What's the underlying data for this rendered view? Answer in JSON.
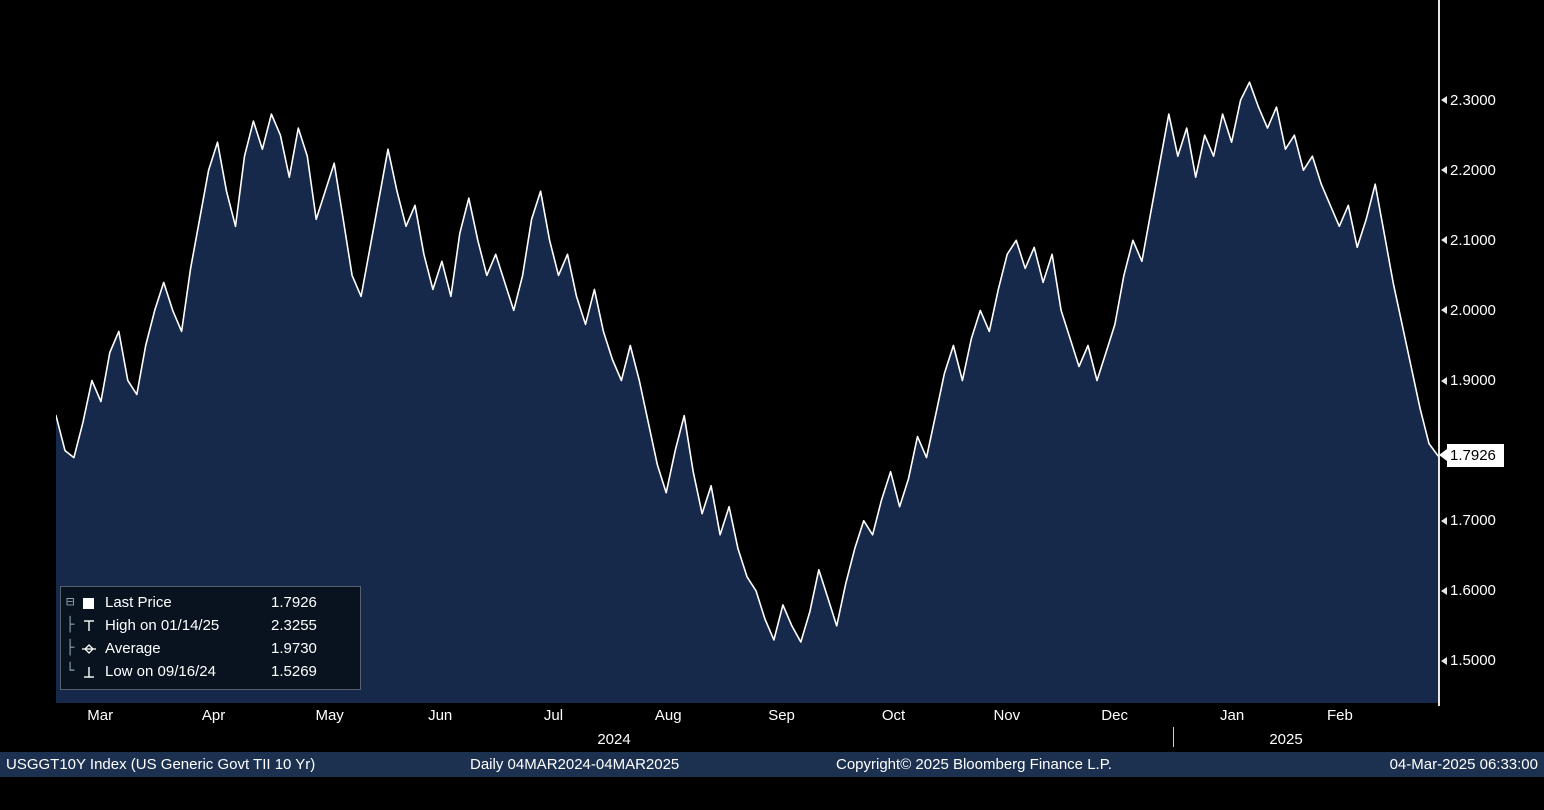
{
  "window": {
    "security": "USGGT10Y Index (US Generic Govt TII 10 Yr)",
    "frequency_range": "Daily 04MAR2024-04MAR2025",
    "copyright": "Copyright© 2025 Bloomberg Finance L.P.",
    "timestamp": "04-Mar-2025 06:33:00"
  },
  "legend": {
    "rows": [
      {
        "marker": "last-price-square",
        "label": "Last Price",
        "value": "1.7926"
      },
      {
        "marker": "high-marker",
        "label": "High on 01/14/25",
        "value": "2.3255"
      },
      {
        "marker": "average-marker",
        "label": "Average",
        "value": "1.9730"
      },
      {
        "marker": "low-marker",
        "label": "Low on 09/16/24",
        "value": "1.5269"
      }
    ],
    "collapse_icon": "⊟",
    "branch_icons": [
      "├",
      "├",
      "└"
    ]
  },
  "y_axis": {
    "ticks": [
      "2.3000",
      "2.2000",
      "2.1000",
      "2.0000",
      "1.9000",
      "1.7000",
      "1.6000",
      "1.5000"
    ],
    "last_price": "1.7926"
  },
  "x_axis": {
    "months": [
      "Mar",
      "Apr",
      "May",
      "Jun",
      "Jul",
      "Aug",
      "Sep",
      "Oct",
      "Nov",
      "Dec",
      "Jan",
      "Feb"
    ],
    "years": [
      {
        "label": "2024"
      },
      {
        "label": "2025"
      }
    ]
  },
  "colors": {
    "background": "#000000",
    "area_fill": "#16294a",
    "line": "#ffffff",
    "status_bar_bg": "#1c3150",
    "callout_bg": "#ffffff",
    "callout_text": "#000000",
    "axis": "#e6e6e6"
  },
  "chart_data": {
    "type": "area",
    "title": "USGGT10Y Index (US Generic Govt TII 10 Yr)",
    "frequency": "Daily",
    "date_range": "04MAR2024-04MAR2025",
    "x": "evenly spaced daily samples from 04-Mar-2024 to 04-Mar-2025",
    "categories_months": [
      "Mar",
      "Apr",
      "May",
      "Jun",
      "Jul",
      "Aug",
      "Sep",
      "Oct",
      "Nov",
      "Dec",
      "Jan",
      "Feb"
    ],
    "values": [
      1.85,
      1.8,
      1.79,
      1.84,
      1.9,
      1.87,
      1.94,
      1.97,
      1.9,
      1.88,
      1.95,
      2.0,
      2.04,
      2.0,
      1.97,
      2.06,
      2.13,
      2.2,
      2.24,
      2.17,
      2.12,
      2.22,
      2.27,
      2.23,
      2.28,
      2.25,
      2.19,
      2.26,
      2.22,
      2.13,
      2.17,
      2.21,
      2.13,
      2.05,
      2.02,
      2.09,
      2.16,
      2.23,
      2.17,
      2.12,
      2.15,
      2.08,
      2.03,
      2.07,
      2.02,
      2.11,
      2.16,
      2.1,
      2.05,
      2.08,
      2.04,
      2.0,
      2.05,
      2.13,
      2.17,
      2.1,
      2.05,
      2.08,
      2.02,
      1.98,
      2.03,
      1.97,
      1.93,
      1.9,
      1.95,
      1.9,
      1.84,
      1.78,
      1.74,
      1.8,
      1.85,
      1.77,
      1.71,
      1.75,
      1.68,
      1.72,
      1.66,
      1.62,
      1.6,
      1.56,
      1.53,
      1.58,
      1.55,
      1.527,
      1.57,
      1.63,
      1.59,
      1.55,
      1.61,
      1.66,
      1.7,
      1.68,
      1.73,
      1.77,
      1.72,
      1.76,
      1.82,
      1.79,
      1.85,
      1.91,
      1.95,
      1.9,
      1.96,
      2.0,
      1.97,
      2.03,
      2.08,
      2.1,
      2.06,
      2.09,
      2.04,
      2.08,
      2.0,
      1.96,
      1.92,
      1.95,
      1.9,
      1.94,
      1.98,
      2.05,
      2.1,
      2.07,
      2.14,
      2.21,
      2.28,
      2.22,
      2.26,
      2.19,
      2.25,
      2.22,
      2.28,
      2.24,
      2.3,
      2.3255,
      2.29,
      2.26,
      2.29,
      2.23,
      2.25,
      2.2,
      2.22,
      2.18,
      2.15,
      2.12,
      2.15,
      2.09,
      2.13,
      2.18,
      2.11,
      2.04,
      1.98,
      1.92,
      1.86,
      1.81,
      1.7926
    ],
    "ylim": [
      1.44,
      2.4
    ],
    "yticks": [
      1.5,
      1.6,
      1.7,
      1.8,
      1.9,
      2.0,
      2.1,
      2.2,
      2.3
    ],
    "stats": {
      "last": 1.7926,
      "high": 2.3255,
      "high_date": "01/14/25",
      "average": 1.973,
      "low": 1.5269,
      "low_date": "09/16/24"
    },
    "grid": false,
    "legend_position": "bottom-left",
    "line_color": "#ffffff",
    "fill_color": "#16294a",
    "background": "#000000"
  }
}
